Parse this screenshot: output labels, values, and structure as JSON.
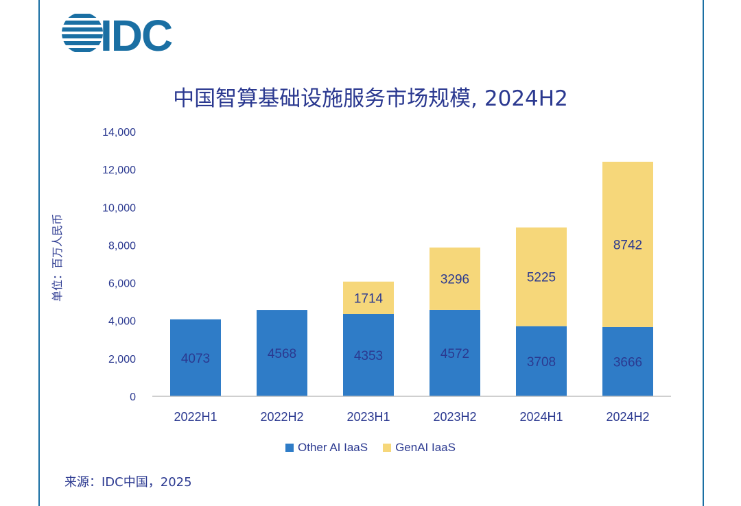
{
  "brand": {
    "logo_text": "IDC",
    "color": "#1a6fa3"
  },
  "chart_data": {
    "type": "bar",
    "stacked": true,
    "title": "中国智算基础设施服务市场规模, 2024H2",
    "ylabel": "单位：百万人民币",
    "xlabel": "",
    "categories": [
      "2022H1",
      "2022H2",
      "2023H1",
      "2023H2",
      "2024H1",
      "2024H2"
    ],
    "series": [
      {
        "name": "Other AI IaaS",
        "color": "#2f7cc7",
        "values": [
          4073,
          4568,
          4353,
          4572,
          3708,
          3666
        ]
      },
      {
        "name": "GenAI IaaS",
        "color": "#f6d77a",
        "values": [
          null,
          null,
          1714,
          3296,
          5225,
          8742
        ]
      }
    ],
    "ylim": [
      0,
      14000
    ],
    "yticks": [
      "0",
      "2,000",
      "4,000",
      "6,000",
      "8,000",
      "10,000",
      "12,000",
      "14,000"
    ],
    "ytick_values": [
      0,
      2000,
      4000,
      6000,
      8000,
      10000,
      12000,
      14000
    ],
    "grid": false,
    "legend": "bottom"
  },
  "source": "来源：IDC中国，2025"
}
